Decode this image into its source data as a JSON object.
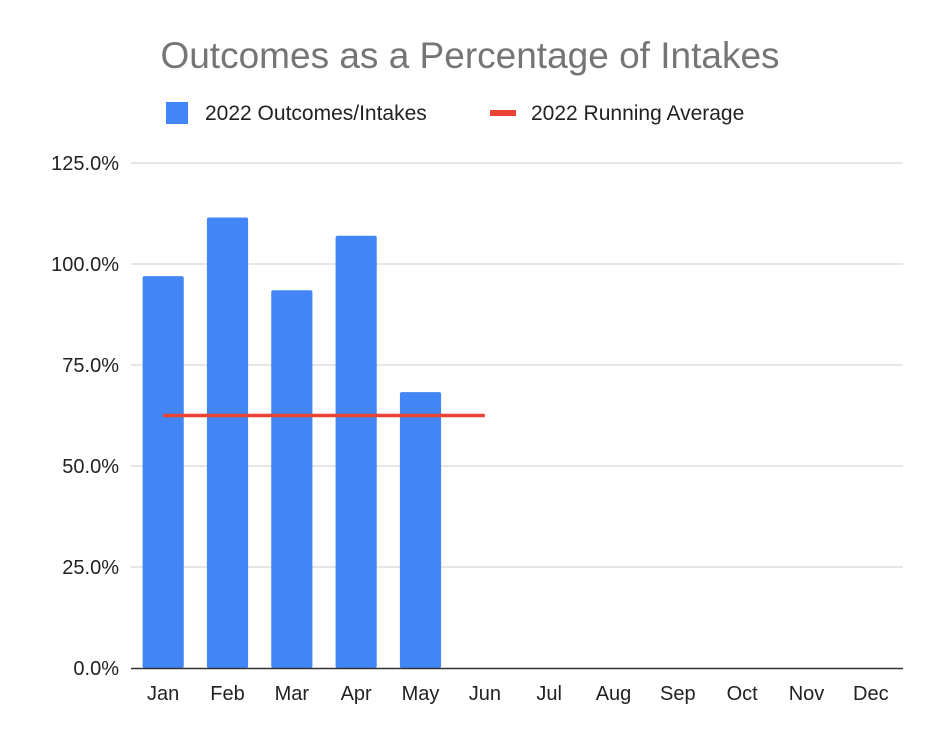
{
  "chart_data": {
    "type": "bar",
    "title": "Outcomes as a Percentage of Intakes",
    "xlabel": "",
    "ylabel": "",
    "categories": [
      "Jan",
      "Feb",
      "Mar",
      "Apr",
      "May",
      "Jun",
      "Jul",
      "Aug",
      "Sep",
      "Oct",
      "Nov",
      "Dec"
    ],
    "series": [
      {
        "name": "2022 Outcomes/Intakes",
        "type": "bar",
        "color": "#4285f4",
        "values": [
          97.0,
          111.5,
          93.5,
          107.0,
          68.3,
          null,
          null,
          null,
          null,
          null,
          null,
          null
        ]
      },
      {
        "name": "2022 Running Average",
        "type": "line",
        "color": "#ea4335",
        "values": [
          62.5,
          62.5,
          62.5,
          62.5,
          62.5,
          62.5,
          null,
          null,
          null,
          null,
          null,
          null
        ]
      }
    ],
    "ylim": [
      0,
      125
    ],
    "yticks": [
      0,
      25,
      50,
      75,
      100,
      125
    ],
    "ytick_labels": [
      "0.0%",
      "25.0%",
      "50.0%",
      "75.0%",
      "100.0%",
      "125.0%"
    ],
    "grid": true,
    "legend_position": "top"
  }
}
